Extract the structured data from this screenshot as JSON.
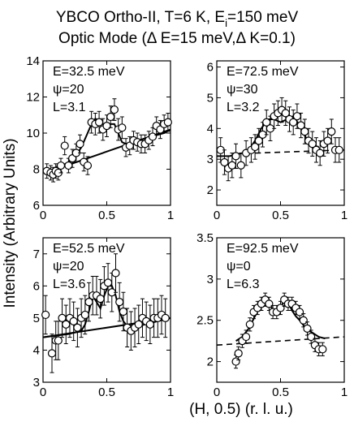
{
  "title_line1": "YBCO Ortho-II, T=6 K, E",
  "title_line1_sub": "i",
  "title_line1_tail": "=150 meV",
  "title_line2": "Optic Mode  (Δ E=15 meV,Δ K=0.1)",
  "ylabel": "Intensity (Arbitrary Units)",
  "xlabel": "(H, 0.5) (r. l. u.)",
  "chart_data": [
    {
      "type": "scatter",
      "annotations": [
        "E=32.5 meV",
        "ψ=20",
        "L=3.1"
      ],
      "xlim": [
        0,
        1
      ],
      "ylim": [
        6,
        14
      ],
      "xticks": [
        0,
        0.5,
        1
      ],
      "xticklabels": [
        "0",
        "0.5",
        "1"
      ],
      "yticks": [
        6,
        8,
        10,
        12,
        14
      ],
      "yticklabels": [
        "6",
        "8",
        "10",
        "12",
        "14"
      ],
      "points": {
        "x": [
          0.03,
          0.06,
          0.08,
          0.1,
          0.12,
          0.14,
          0.17,
          0.2,
          0.23,
          0.26,
          0.29,
          0.32,
          0.35,
          0.38,
          0.41,
          0.44,
          0.47,
          0.5,
          0.53,
          0.56,
          0.59,
          0.62,
          0.65,
          0.68,
          0.71,
          0.74,
          0.77,
          0.8,
          0.83,
          0.86,
          0.89,
          0.92,
          0.95,
          0.98
        ],
        "y": [
          7.9,
          7.8,
          7.7,
          7.9,
          7.8,
          8.2,
          9.3,
          8.2,
          8.6,
          8.9,
          9.4,
          8.4,
          8.2,
          10.6,
          10.5,
          10.6,
          10.2,
          10.4,
          10.9,
          11.3,
          10.2,
          10.3,
          9.2,
          9.3,
          9.6,
          9.5,
          9.4,
          9.4,
          9.6,
          9.8,
          10.4,
          10.2,
          10.5,
          10.6
        ]
      },
      "errors": [
        0.4,
        0.4,
        0.4,
        0.4,
        0.4,
        0.4,
        0.5,
        0.4,
        0.5,
        0.5,
        0.5,
        0.5,
        0.5,
        0.6,
        0.6,
        0.6,
        0.6,
        0.6,
        0.6,
        0.6,
        0.6,
        0.6,
        0.5,
        0.5,
        0.5,
        0.5,
        0.5,
        0.5,
        0.5,
        0.5,
        0.5,
        0.5,
        0.5,
        0.5
      ],
      "fit": {
        "x": [
          0.02,
          0.05,
          0.1,
          0.15,
          0.2,
          0.25,
          0.3,
          0.35,
          0.38,
          0.41,
          0.44,
          0.47,
          0.5,
          0.53,
          0.56,
          0.59,
          0.62,
          0.65,
          0.7,
          0.75,
          0.8,
          0.85,
          0.9,
          0.95,
          1.0
        ],
        "y": [
          7.8,
          7.9,
          8.1,
          8.2,
          8.4,
          8.7,
          9.2,
          10.0,
          10.5,
          10.8,
          10.7,
          10.5,
          10.4,
          10.5,
          10.5,
          10.0,
          9.5,
          9.4,
          9.5,
          9.6,
          9.7,
          9.8,
          9.9,
          10.0,
          10.2
        ]
      },
      "background": {
        "x": [
          0.02,
          1.0
        ],
        "y": [
          7.8,
          10.2
        ],
        "style": "solid"
      }
    },
    {
      "type": "scatter",
      "annotations": [
        "E=72.5 meV",
        "ψ=30",
        "L=3.2"
      ],
      "xlim": [
        0,
        1
      ],
      "ylim": [
        1.5,
        6.2
      ],
      "xticks": [
        0,
        0.5,
        1
      ],
      "xticklabels": [
        "0",
        "0.5",
        "1"
      ],
      "yticks": [
        2,
        3,
        4,
        5,
        6
      ],
      "yticklabels": [
        "2",
        "3",
        "4",
        "5",
        "6"
      ],
      "points": {
        "x": [
          0.03,
          0.06,
          0.09,
          0.12,
          0.15,
          0.19,
          0.23,
          0.27,
          0.3,
          0.33,
          0.36,
          0.39,
          0.42,
          0.45,
          0.48,
          0.51,
          0.54,
          0.57,
          0.6,
          0.63,
          0.66,
          0.69,
          0.72,
          0.75,
          0.78,
          0.81,
          0.84,
          0.87,
          0.9,
          0.93,
          0.96
        ],
        "y": [
          3.3,
          2.9,
          2.7,
          2.8,
          3.1,
          2.8,
          3.2,
          3.3,
          3.4,
          3.6,
          3.8,
          4.2,
          4.0,
          4.4,
          4.5,
          4.6,
          4.5,
          4.3,
          4.2,
          4.4,
          4.1,
          3.9,
          3.6,
          3.5,
          3.3,
          3.2,
          3.5,
          3.6,
          3.9,
          3.3,
          3.3
        ],
        "note": "open circles"
      },
      "errors": [
        0.4,
        0.4,
        0.4,
        0.4,
        0.4,
        0.4,
        0.4,
        0.4,
        0.4,
        0.4,
        0.4,
        0.4,
        0.4,
        0.4,
        0.4,
        0.4,
        0.4,
        0.4,
        0.4,
        0.4,
        0.4,
        0.4,
        0.4,
        0.4,
        0.4,
        0.4,
        0.4,
        0.4,
        0.4,
        0.4,
        0.4
      ],
      "fit": {
        "x": [
          0.0,
          0.1,
          0.2,
          0.25,
          0.3,
          0.35,
          0.4,
          0.45,
          0.5,
          0.55,
          0.6,
          0.65,
          0.7,
          0.75,
          0.8
        ],
        "y": [
          3.1,
          3.1,
          3.2,
          3.3,
          3.6,
          4.0,
          4.3,
          4.3,
          4.2,
          4.3,
          4.4,
          4.1,
          3.7,
          3.45,
          3.4
        ]
      },
      "background": {
        "x": [
          0.3,
          1.0
        ],
        "y": [
          3.2,
          3.3
        ],
        "style": "dashed"
      }
    },
    {
      "type": "scatter",
      "annotations": [
        "E=52.5 meV",
        "ψ=20",
        "L=3.6"
      ],
      "xlim": [
        0,
        1
      ],
      "ylim": [
        3,
        7.5
      ],
      "xticks": [
        0,
        0.5,
        1
      ],
      "xticklabels": [
        "0",
        "0.5",
        "1"
      ],
      "yticks": [
        3,
        4,
        5,
        6,
        7
      ],
      "yticklabels": [
        "3",
        "4",
        "5",
        "6",
        "7"
      ],
      "points": {
        "x": [
          0.02,
          0.07,
          0.1,
          0.12,
          0.15,
          0.18,
          0.21,
          0.24,
          0.27,
          0.3,
          0.33,
          0.36,
          0.39,
          0.42,
          0.45,
          0.48,
          0.51,
          0.54,
          0.57,
          0.6,
          0.63,
          0.66,
          0.69,
          0.72,
          0.75,
          0.78,
          0.81,
          0.84,
          0.87,
          0.9,
          0.93,
          0.96
        ],
        "y": [
          5.1,
          3.9,
          4.3,
          4.3,
          5.0,
          4.8,
          5.0,
          4.9,
          4.7,
          5.0,
          5.1,
          5.5,
          5.7,
          5.7,
          5.6,
          6.0,
          6.1,
          5.8,
          6.4,
          5.5,
          5.2,
          4.7,
          4.6,
          4.7,
          4.8,
          5.0,
          4.9,
          4.8,
          5.0,
          5.0,
          5.1,
          5.0
        ]
      },
      "errors": [
        0.6,
        0.6,
        0.6,
        0.6,
        0.6,
        0.6,
        0.6,
        0.6,
        0.6,
        0.6,
        0.6,
        0.6,
        0.6,
        0.6,
        0.6,
        0.6,
        0.6,
        0.6,
        0.6,
        0.6,
        0.6,
        0.6,
        0.6,
        0.6,
        0.6,
        0.6,
        0.6,
        0.6,
        0.6,
        0.6,
        0.6,
        0.6
      ],
      "fit": {
        "x": [
          0.0,
          0.1,
          0.2,
          0.25,
          0.3,
          0.33,
          0.36,
          0.39,
          0.42,
          0.45,
          0.48,
          0.51,
          0.54,
          0.57,
          0.6,
          0.63,
          0.66,
          0.7,
          0.75,
          0.8,
          0.85,
          0.9,
          1.0
        ],
        "y": [
          4.4,
          4.45,
          4.5,
          4.55,
          4.6,
          4.8,
          5.2,
          5.7,
          5.5,
          5.3,
          5.7,
          6.0,
          6.0,
          5.7,
          5.2,
          4.9,
          4.75,
          4.7,
          4.75,
          4.8,
          4.85,
          4.9,
          5.0
        ]
      },
      "background": {
        "x": [
          0.0,
          1.0
        ],
        "y": [
          4.4,
          5.0
        ],
        "style": "solid"
      }
    },
    {
      "type": "scatter",
      "annotations": [
        "E=92.5 meV",
        "ψ=0",
        "L=6.3"
      ],
      "xlim": [
        0,
        1
      ],
      "ylim": [
        1.75,
        3.5
      ],
      "xticks": [
        0,
        0.5,
        1
      ],
      "xticklabels": [
        "0",
        "0.5",
        "1"
      ],
      "yticks": [
        2,
        2.5,
        3,
        3.5
      ],
      "yticklabels": [
        "2",
        "2.5",
        "3",
        "3.5"
      ],
      "points": {
        "x": [
          0.15,
          0.17,
          0.2,
          0.23,
          0.26,
          0.29,
          0.32,
          0.35,
          0.38,
          0.41,
          0.44,
          0.47,
          0.5,
          0.53,
          0.56,
          0.59,
          0.62,
          0.65,
          0.68,
          0.71,
          0.74,
          0.77,
          0.8,
          0.83
        ],
        "y": [
          2.0,
          2.1,
          2.25,
          2.3,
          2.45,
          2.6,
          2.65,
          2.7,
          2.75,
          2.7,
          2.6,
          2.6,
          2.65,
          2.75,
          2.7,
          2.7,
          2.65,
          2.6,
          2.5,
          2.4,
          2.3,
          2.2,
          2.15,
          2.15
        ]
      },
      "errors": [
        0.08,
        0.08,
        0.08,
        0.08,
        0.08,
        0.08,
        0.08,
        0.08,
        0.08,
        0.08,
        0.08,
        0.08,
        0.08,
        0.08,
        0.08,
        0.08,
        0.08,
        0.08,
        0.08,
        0.08,
        0.08,
        0.08,
        0.08,
        0.08
      ],
      "fit": {
        "x": [
          0.15,
          0.2,
          0.25,
          0.3,
          0.35,
          0.38,
          0.41,
          0.44,
          0.47,
          0.5,
          0.53,
          0.56,
          0.59,
          0.62,
          0.65,
          0.7,
          0.75,
          0.8,
          0.85
        ],
        "y": [
          2.25,
          2.3,
          2.4,
          2.55,
          2.7,
          2.75,
          2.72,
          2.62,
          2.58,
          2.65,
          2.75,
          2.72,
          2.62,
          2.55,
          2.5,
          2.4,
          2.35,
          2.3,
          2.28
        ]
      },
      "background": {
        "x": [
          0.0,
          1.0
        ],
        "y": [
          2.2,
          2.3
        ],
        "style": "dashed"
      }
    }
  ]
}
